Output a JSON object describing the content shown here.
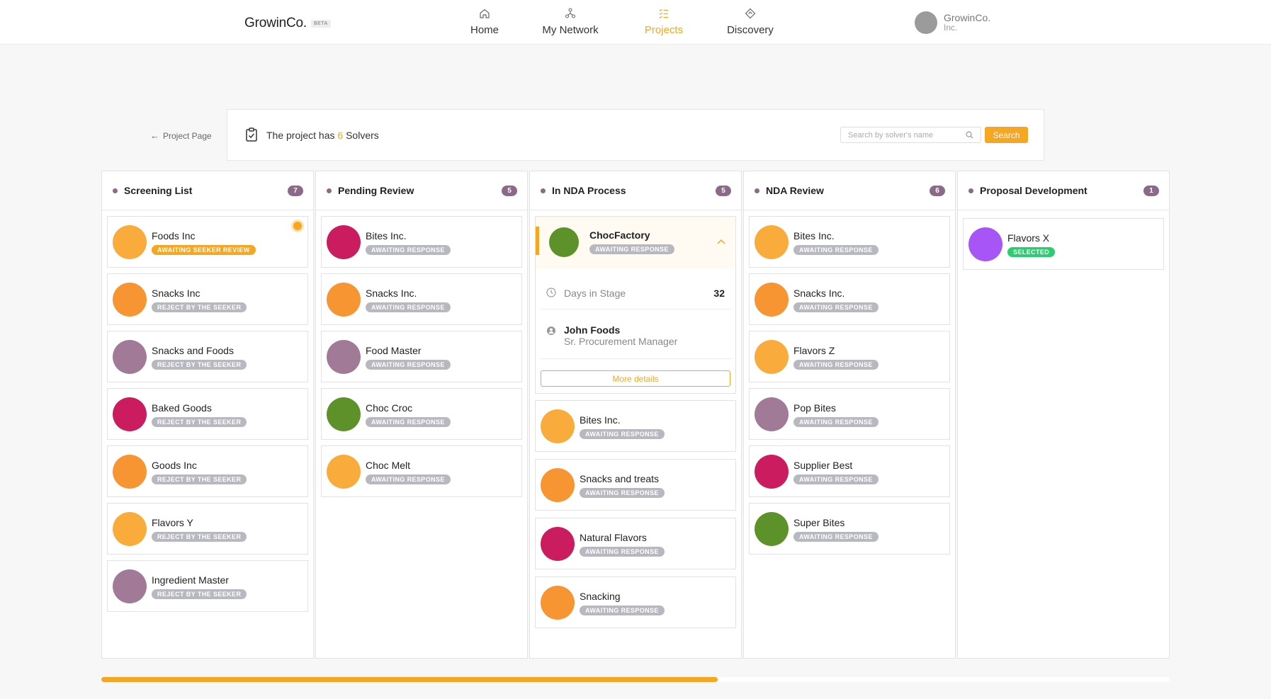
{
  "header": {
    "logo": "GrowinCo.",
    "beta": "BETA",
    "nav": [
      {
        "label": "Home",
        "icon": "home-icon"
      },
      {
        "label": "My Network",
        "icon": "network-icon"
      },
      {
        "label": "Projects",
        "icon": "projects-icon",
        "active": true
      },
      {
        "label": "Discovery",
        "icon": "discovery-icon"
      }
    ],
    "user": {
      "name": "GrowinCo.",
      "sub": "Inc."
    }
  },
  "back_link": "Project Page",
  "project": {
    "text_prefix": "The project has",
    "count": "6",
    "text_suffix": "Solvers",
    "search_placeholder": "Search by solver's name",
    "search_button": "Search"
  },
  "colors": {
    "accent": "#f5a623",
    "orange": "#f79533",
    "mauve": "#a07a97",
    "magenta": "#cb1c5f",
    "green": "#5d9129",
    "purple": "#a855f7",
    "badge_grey": "#b8b8c0",
    "badge_orange": "#f5a623",
    "badge_green": "#2ecc71"
  },
  "columns": [
    {
      "title": "Screening List",
      "count": "7",
      "cards": [
        {
          "name": "Foods Inc",
          "status": "AWAITING SEEKER REVIEW",
          "avatar": "#f9ac3b",
          "badge": "badge_orange",
          "notify": true
        },
        {
          "name": "Snacks Inc",
          "status": "REJECT BY THE SEEKER",
          "avatar": "#f79533",
          "badge": "badge_grey"
        },
        {
          "name": "Snacks and Foods",
          "status": "REJECT BY THE SEEKER",
          "avatar": "#a07a97",
          "badge": "badge_grey"
        },
        {
          "name": "Baked Goods",
          "status": "REJECT BY THE SEEKER",
          "avatar": "#cb1c5f",
          "badge": "badge_grey"
        },
        {
          "name": "Goods Inc",
          "status": "REJECT BY THE SEEKER",
          "avatar": "#f79533",
          "badge": "badge_grey"
        },
        {
          "name": "Flavors Y",
          "status": "REJECT BY THE SEEKER",
          "avatar": "#f9ac3b",
          "badge": "badge_grey"
        },
        {
          "name": "Ingredient Master",
          "status": "REJECT BY THE SEEKER",
          "avatar": "#a07a97",
          "badge": "badge_grey"
        }
      ]
    },
    {
      "title": "Pending Review",
      "count": "5",
      "cards": [
        {
          "name": "Bites Inc.",
          "status": "AWAITING RESPONSE",
          "avatar": "#cb1c5f",
          "badge": "badge_grey"
        },
        {
          "name": "Snacks Inc.",
          "status": "AWAITING RESPONSE",
          "avatar": "#f79533",
          "badge": "badge_grey"
        },
        {
          "name": "Food Master",
          "status": "AWAITING RESPONSE",
          "avatar": "#a07a97",
          "badge": "badge_grey"
        },
        {
          "name": "Choc Croc",
          "status": "AWAITING RESPONSE",
          "avatar": "#5d9129",
          "badge": "badge_grey"
        },
        {
          "name": "Choc Melt",
          "status": "AWAITING RESPONSE",
          "avatar": "#f9ac3b",
          "badge": "badge_grey"
        }
      ]
    },
    {
      "title": "In NDA Process",
      "count": "5",
      "expanded": {
        "name": "ChocFactory",
        "status": "AWAITING RESPONSE",
        "avatar": "#5d9129",
        "days_label": "Days in Stage",
        "days_value": "32",
        "contact_name": "John Foods",
        "contact_role": "Sr. Procurement Manager",
        "more": "More details"
      },
      "cards": [
        {
          "name": "Bites Inc.",
          "status": "AWAITING RESPONSE",
          "avatar": "#f9ac3b",
          "badge": "badge_grey"
        },
        {
          "name": "Snacks and treats",
          "status": "AWAITING RESPONSE",
          "avatar": "#f79533",
          "badge": "badge_grey"
        },
        {
          "name": "Natural Flavors",
          "status": "AWAITING RESPONSE",
          "avatar": "#cb1c5f",
          "badge": "badge_grey"
        },
        {
          "name": "Snacking",
          "status": "AWAITING RESPONSE",
          "avatar": "#f79533",
          "badge": "badge_grey"
        }
      ]
    },
    {
      "title": "NDA Review",
      "count": "6",
      "cards": [
        {
          "name": "Bites Inc.",
          "status": "AWAITING RESPONSE",
          "avatar": "#f9ac3b",
          "badge": "badge_grey"
        },
        {
          "name": "Snacks Inc.",
          "status": "AWAITING RESPONSE",
          "avatar": "#f79533",
          "badge": "badge_grey"
        },
        {
          "name": "Flavors Z",
          "status": "AWAITING RESPONSE",
          "avatar": "#f9ac3b",
          "badge": "badge_grey"
        },
        {
          "name": "Pop Bites",
          "status": "AWAITING RESPONSE",
          "avatar": "#a07a97",
          "badge": "badge_grey"
        },
        {
          "name": "Supplier Best",
          "status": "AWAITING RESPONSE",
          "avatar": "#cb1c5f",
          "badge": "badge_grey"
        },
        {
          "name": "Super Bites",
          "status": "AWAITING RESPONSE",
          "avatar": "#5d9129",
          "badge": "badge_grey"
        }
      ]
    },
    {
      "title": "Proposal Development",
      "count": "1",
      "cards": [
        {
          "name": "Flavors X",
          "status": "SELECTED",
          "avatar": "#a855f7",
          "badge": "badge_green"
        }
      ]
    }
  ],
  "scroll_progress": 0.577
}
